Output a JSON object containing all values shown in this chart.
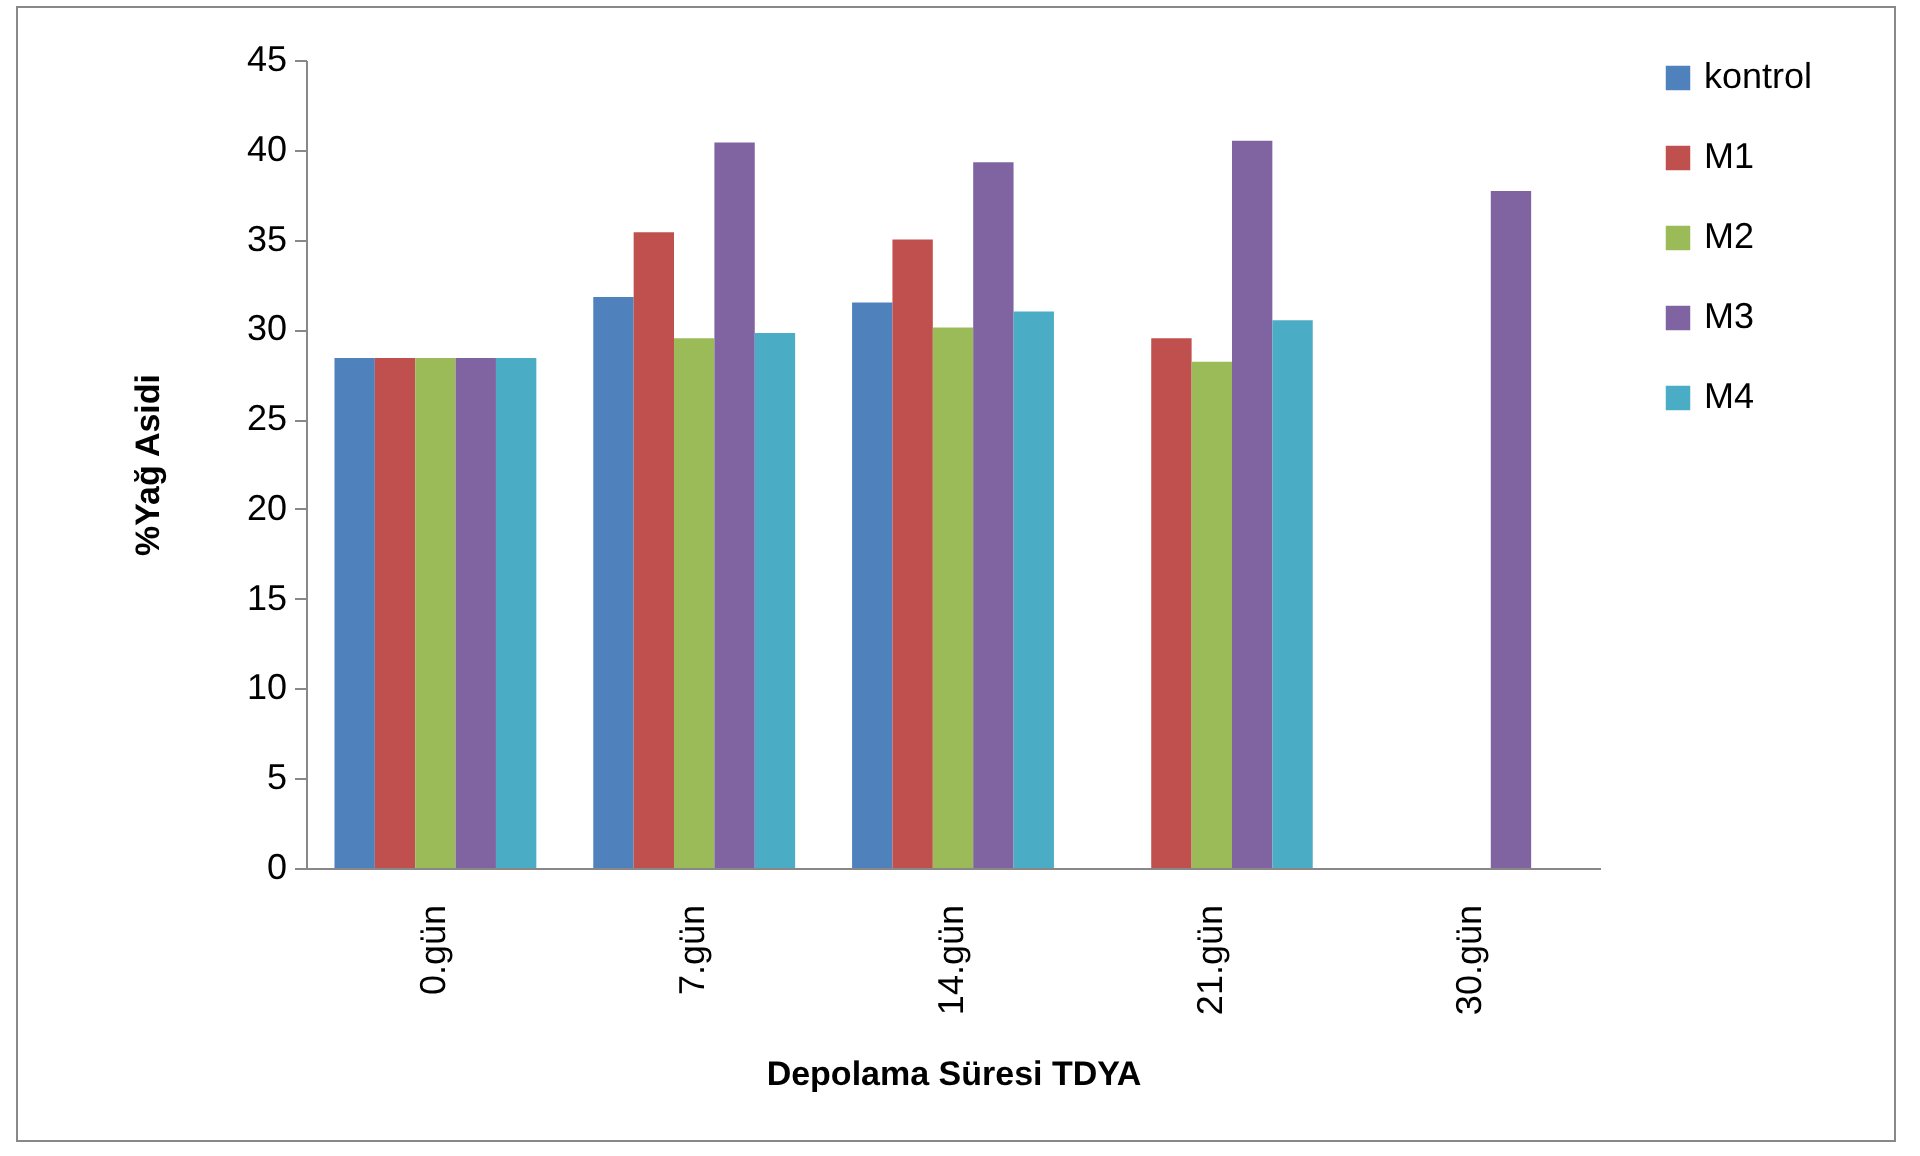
{
  "chart_data": {
    "type": "bar",
    "xlabel": "Depolama Süresi TDYA",
    "ylabel": "%Yağ Asidi",
    "categories": [
      "0.gün",
      "7.gün",
      "14.gün",
      "21.gün",
      "30.gün"
    ],
    "series": [
      {
        "name": "kontrol",
        "color": "#4f81bd",
        "values": [
          28.4,
          31.8,
          31.5,
          null,
          null
        ]
      },
      {
        "name": "M1",
        "color": "#c0504d",
        "values": [
          28.4,
          35.4,
          35.0,
          29.5,
          null
        ]
      },
      {
        "name": "M2",
        "color": "#9bbb59",
        "values": [
          28.4,
          29.5,
          30.1,
          28.2,
          null
        ]
      },
      {
        "name": "M3",
        "color": "#8064a2",
        "values": [
          28.4,
          40.4,
          39.3,
          40.5,
          37.7
        ]
      },
      {
        "name": "M4",
        "color": "#4bacc6",
        "values": [
          28.4,
          29.8,
          31.0,
          30.5,
          null
        ]
      }
    ],
    "ylim": [
      0,
      45
    ],
    "yticks": [
      0,
      5,
      10,
      15,
      20,
      25,
      30,
      35,
      40,
      45
    ],
    "grid": false,
    "legend": "right"
  }
}
